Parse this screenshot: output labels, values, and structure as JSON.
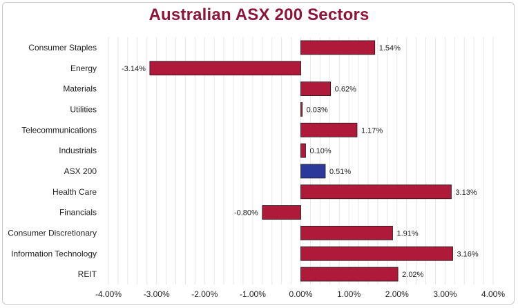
{
  "chart_data": {
    "type": "bar",
    "orientation": "horizontal",
    "title": "Australian ASX 200 Sectors",
    "categories": [
      "Consumer Staples",
      "Energy",
      "Materials",
      "Utilities",
      "Telecommunications",
      "Industrials",
      "ASX 200",
      "Health Care",
      "Financials",
      "Consumer Discretionary",
      "Information Technology",
      "REIT"
    ],
    "values": [
      1.54,
      -3.14,
      0.62,
      0.03,
      1.17,
      0.1,
      0.51,
      3.13,
      -0.8,
      1.91,
      3.16,
      2.02
    ],
    "data_labels": [
      "1.54%",
      "-3.14%",
      "0.62%",
      "0.03%",
      "1.17%",
      "0.10%",
      "0.51%",
      "3.13%",
      "-0.80%",
      "1.91%",
      "3.16%",
      "2.02%"
    ],
    "highlight_category": "ASX 200",
    "xlim": [
      -4.0,
      4.0
    ],
    "x_ticks": [
      -4,
      -3,
      -2,
      -1,
      0,
      1,
      2,
      3,
      4
    ],
    "x_tick_labels": [
      "-4.00%",
      "-3.00%",
      "-2.00%",
      "-1.00%",
      "0.00%",
      "1.00%",
      "2.00%",
      "3.00%",
      "4.00%"
    ],
    "minor_grid_step": 0.2,
    "grid": true,
    "xlabel": "",
    "ylabel": "",
    "colors": {
      "bar": "#b01a3a",
      "highlight_bar": "#2b3a9a",
      "bar_edge": "#1a1a1a",
      "title": "#8e1537",
      "grid": "#e6e6e6"
    }
  }
}
